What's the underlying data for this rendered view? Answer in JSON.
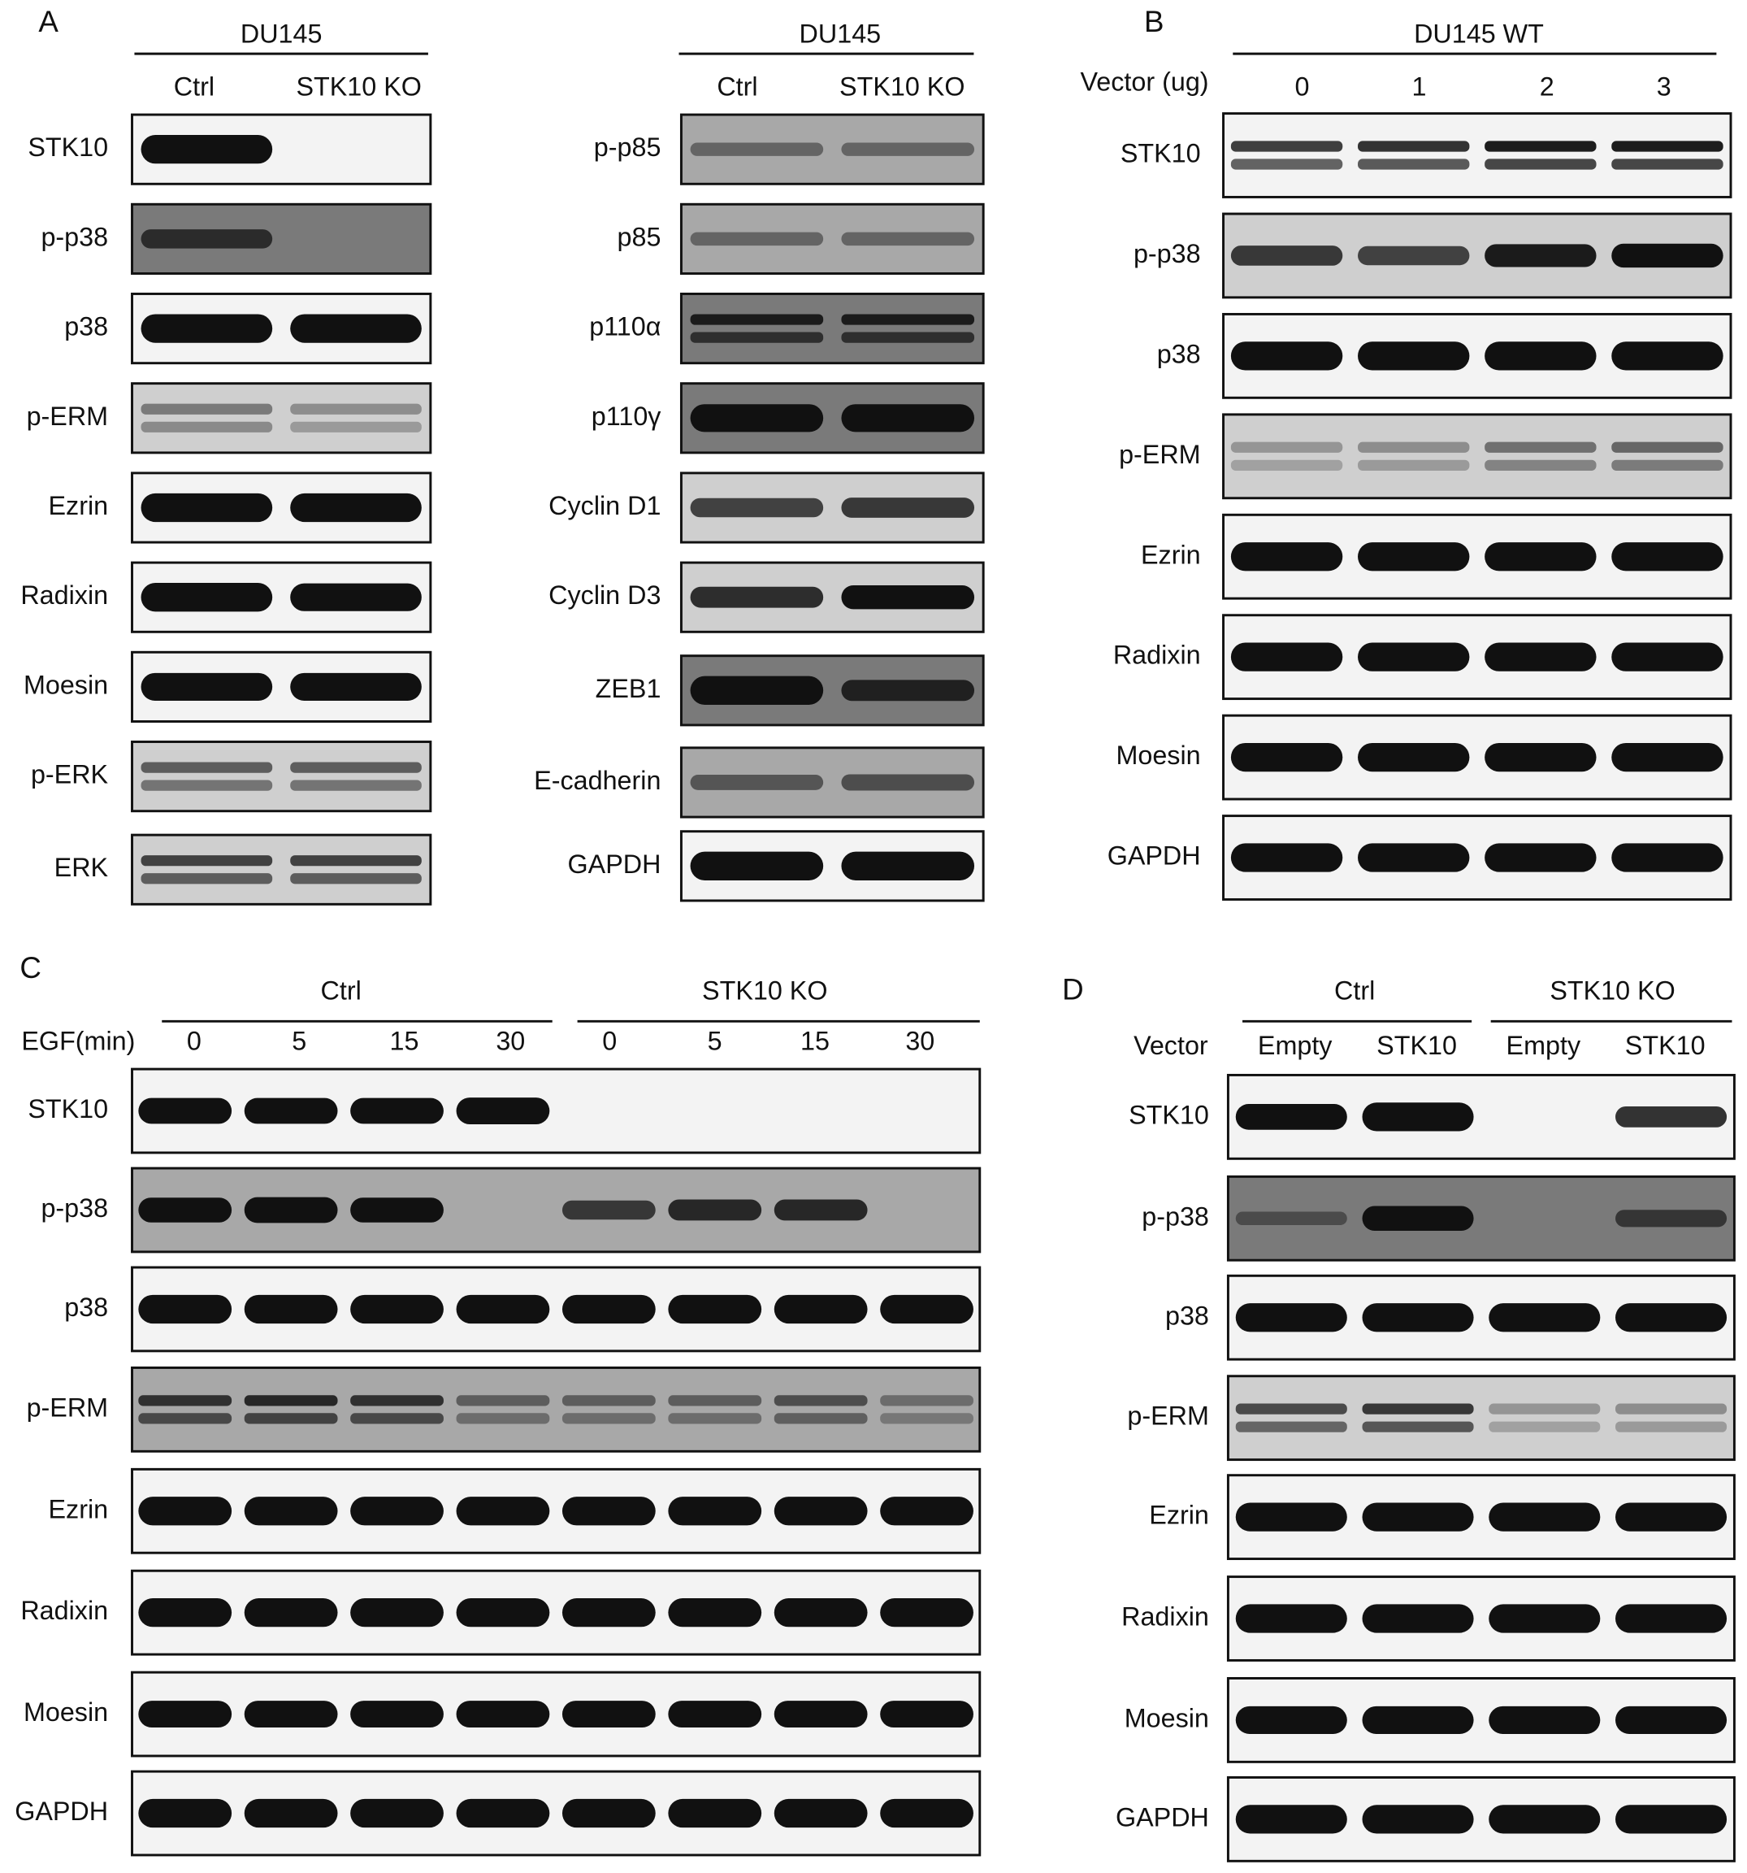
{
  "panels": [
    {
      "label": "A",
      "header": "DU145",
      "columns": [
        "Ctrl",
        "STK10 KO"
      ],
      "rows": [
        "STK10",
        "p-p38",
        "p38",
        "p-ERM",
        "Ezrin",
        "Radixin",
        "Moesin",
        "p-ERK",
        "ERK"
      ]
    },
    {
      "header": "DU145",
      "columns": [
        "Ctrl",
        "STK10 KO"
      ],
      "rows": [
        "p-p85",
        "p85",
        "p110α",
        "p110γ",
        "Cyclin D1",
        "Cyclin D3",
        "ZEB1",
        "E-cadherin",
        "GAPDH"
      ]
    },
    {
      "label": "B",
      "header": "DU145 WT",
      "column_title": "Vector (ug)",
      "columns": [
        "0",
        "1",
        "2",
        "3"
      ],
      "rows": [
        "STK10",
        "p-p38",
        "p38",
        "p-ERM",
        "Ezrin",
        "Radixin",
        "Moesin",
        "GAPDH"
      ]
    },
    {
      "label": "C",
      "groups": [
        "Ctrl",
        "STK10 KO"
      ],
      "column_title": "EGF(min)",
      "columns": [
        "0",
        "5",
        "15",
        "30",
        "0",
        "5",
        "15",
        "30"
      ],
      "rows": [
        "STK10",
        "p-p38",
        "p38",
        "p-ERM",
        "Ezrin",
        "Radixin",
        "Moesin",
        "GAPDH"
      ]
    },
    {
      "label": "D",
      "groups": [
        "Ctrl",
        "STK10 KO"
      ],
      "column_title": "Vector",
      "columns": [
        "Empty",
        "STK10",
        "Empty",
        "STK10"
      ],
      "rows": [
        "STK10",
        "p-p38",
        "p38",
        "p-ERM",
        "Ezrin",
        "Radixin",
        "Moesin",
        "GAPDH"
      ]
    }
  ]
}
